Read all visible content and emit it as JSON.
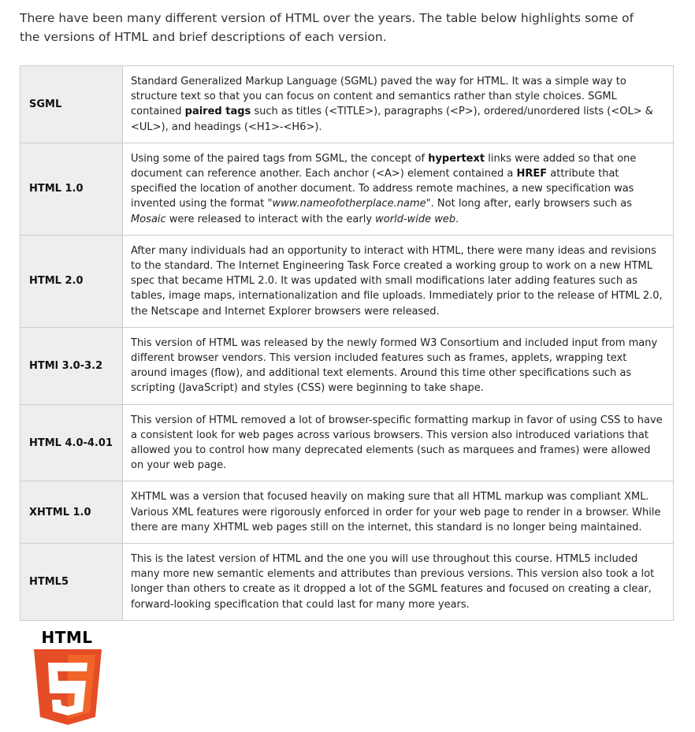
{
  "intro": {
    "text": "There have been many different version of HTML over the years. The table below highlights some of the versions of HTML and brief descriptions of each version."
  },
  "versions": [
    {
      "name": "SGML",
      "description": [
        {
          "t": "Standard Generalized Markup Language (SGML) paved the way for HTML. It was a simple way to structure text so that you can focus on content and semantics rather than style choices. SGML contained "
        },
        {
          "t": "paired tags",
          "s": "b"
        },
        {
          "t": " such as titles (<TITLE>), paragraphs (<P>), ordered/unordered lists (<OL> & <UL>), and headings (<H1>-<H6>)."
        }
      ]
    },
    {
      "name": "HTML 1.0",
      "description": [
        {
          "t": "Using some of the paired tags from SGML, the concept of "
        },
        {
          "t": "hypertext",
          "s": "b"
        },
        {
          "t": " links were added so that one document can reference another. Each anchor (<A>) element contained a "
        },
        {
          "t": "HREF",
          "s": "b"
        },
        {
          "t": " attribute that specified the location of another document. To address remote machines, a new specification was invented using the format "
        },
        {
          "t": "\"www.nameofotherplace.name\"",
          "s": "i"
        },
        {
          "t": ". Not long after, early browsers such as "
        },
        {
          "t": "Mosaic",
          "s": "i"
        },
        {
          "t": " were released to interact with the early "
        },
        {
          "t": "world-wide web",
          "s": "i"
        },
        {
          "t": "."
        }
      ]
    },
    {
      "name": "HTML 2.0",
      "description": [
        {
          "t": "After many individuals had an opportunity to interact with HTML, there were many ideas and revisions to the standard. The Internet Engineering Task Force created a working group to work on a new HTML spec that became HTML 2.0. It was updated with small modifications later adding features such as tables, image maps, internationalization and file uploads. Immediately prior to the release of HTML 2.0, the Netscape and Internet Explorer browsers were released."
        }
      ]
    },
    {
      "name": "HTMl 3.0-3.2",
      "description": [
        {
          "t": "This version of HTML was released by the newly formed W3 Consortium and included input from many different browser vendors. This version included features such as frames, applets, wrapping text around images (flow), and additional text elements. Around this time other specifications such as scripting (JavaScript) and styles (CSS) were beginning to take shape."
        }
      ]
    },
    {
      "name": "HTML 4.0-4.01",
      "description": [
        {
          "t": "This version of HTML removed a lot of browser-specific formatting markup in favor of using CSS to have a consistent look for web pages across various browsers. This version also introduced variations that allowed you to control how many deprecated elements (such as marquees and frames) were allowed on your web page."
        }
      ]
    },
    {
      "name": "XHTML 1.0",
      "description": [
        {
          "t": "XHTML was a version that focused heavily on making sure that all HTML markup was compliant XML. Various XML features were rigorously enforced in order for your web page to render in a browser. While there are many XHTML web pages still on the internet, this standard is no longer being maintained."
        }
      ]
    },
    {
      "name": "HTML5",
      "description": [
        {
          "t": "This is the latest version of HTML and the one you will use throughout this course. HTML5 included many more new semantic elements and attributes than previous versions. This version also took a lot longer than others to create as it dropped a lot of the SGML features and focused on creating a clear, forward-looking specification that could last for many more years."
        }
      ]
    }
  ],
  "logo": {
    "word": "HTML",
    "numeral": "5",
    "icon": "html5-shield-icon",
    "colors": {
      "shield_dark": "#e44d26",
      "shield_light": "#f16529",
      "numeral": "#ffffff",
      "word": "#000000"
    }
  }
}
